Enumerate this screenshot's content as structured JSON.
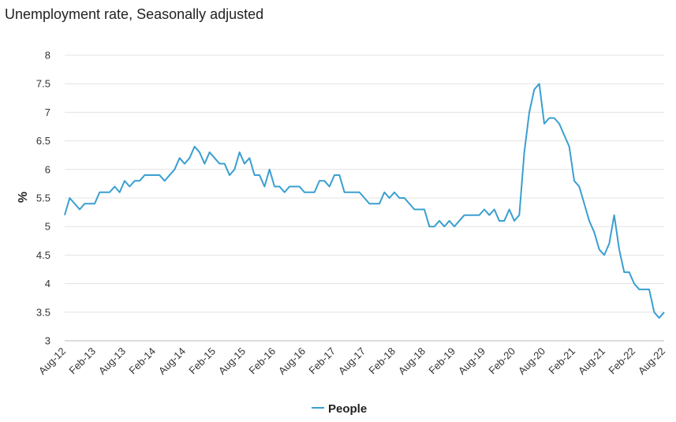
{
  "chart_data": {
    "type": "line",
    "title": "Unemployment rate, Seasonally adjusted",
    "xlabel": "",
    "ylabel": "%",
    "ylim": [
      3,
      8
    ],
    "yticks": [
      "3",
      "3.5",
      "4",
      "4.5",
      "5",
      "5.5",
      "6",
      "6.5",
      "7",
      "7.5",
      "8"
    ],
    "xticks": [
      "Aug-12",
      "Feb-13",
      "Aug-13",
      "Feb-14",
      "Aug-14",
      "Feb-15",
      "Aug-15",
      "Feb-16",
      "Aug-16",
      "Feb-17",
      "Aug-17",
      "Feb-18",
      "Aug-18",
      "Feb-19",
      "Aug-19",
      "Feb-20",
      "Aug-20",
      "Feb-21",
      "Aug-21",
      "Feb-22",
      "Aug-22"
    ],
    "grid": "horizontal",
    "legend_position": "bottom",
    "x_start": "Aug-12",
    "x_end": "Aug-22",
    "series": [
      {
        "name": "People",
        "color": "#3a9fd0",
        "values": [
          5.2,
          5.5,
          5.4,
          5.3,
          5.4,
          5.4,
          5.4,
          5.6,
          5.6,
          5.6,
          5.7,
          5.6,
          5.8,
          5.7,
          5.8,
          5.8,
          5.9,
          5.9,
          5.9,
          5.9,
          5.8,
          5.9,
          6.0,
          6.2,
          6.1,
          6.2,
          6.4,
          6.3,
          6.1,
          6.3,
          6.2,
          6.1,
          6.1,
          5.9,
          6.0,
          6.3,
          6.1,
          6.2,
          5.9,
          5.9,
          5.7,
          6.0,
          5.7,
          5.7,
          5.6,
          5.7,
          5.7,
          5.7,
          5.6,
          5.6,
          5.6,
          5.8,
          5.8,
          5.7,
          5.9,
          5.9,
          5.6,
          5.6,
          5.6,
          5.6,
          5.5,
          5.4,
          5.4,
          5.4,
          5.6,
          5.5,
          5.6,
          5.5,
          5.5,
          5.4,
          5.3,
          5.3,
          5.3,
          5.0,
          5.0,
          5.1,
          5.0,
          5.1,
          5.0,
          5.1,
          5.2,
          5.2,
          5.2,
          5.2,
          5.3,
          5.2,
          5.3,
          5.1,
          5.1,
          5.3,
          5.1,
          5.2,
          6.3,
          7.0,
          7.4,
          7.5,
          6.8,
          6.9,
          6.9,
          6.8,
          6.6,
          6.4,
          5.8,
          5.7,
          5.4,
          5.1,
          4.9,
          4.6,
          4.5,
          4.7,
          5.2,
          4.6,
          4.2,
          4.2,
          4.0,
          3.9,
          3.9,
          3.9,
          3.5,
          3.4,
          3.5
        ]
      }
    ]
  }
}
